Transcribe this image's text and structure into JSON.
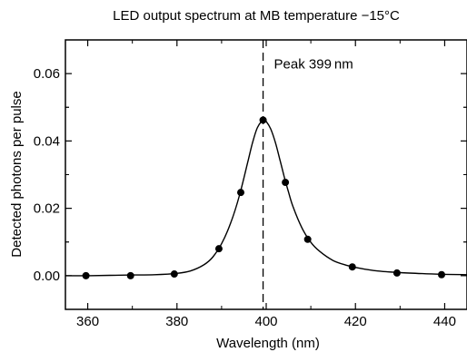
{
  "chart_data": {
    "type": "scatter",
    "title": "LED output spectrum at MB temperature −15°C",
    "xlabel": "Wavelength (nm)",
    "ylabel": "Detected photons per pulse",
    "xlim": [
      355,
      445
    ],
    "ylim": [
      -0.01,
      0.07
    ],
    "xticks": [
      360,
      380,
      400,
      420,
      440
    ],
    "xtick_labels": [
      "360",
      "380",
      "400",
      "420",
      "440"
    ],
    "yticks": [
      0.0,
      0.02,
      0.04,
      0.06
    ],
    "ytick_labels": [
      "0.00",
      "0.02",
      "0.04",
      "0.06"
    ],
    "grid": false,
    "legend": "none",
    "series": [
      {
        "x": [
          359.6,
          369.6,
          379.4,
          389.4,
          394.3,
          399.3,
          404.3,
          409.3,
          419.3,
          429.3,
          439.3
        ],
        "y": [
          0.0,
          0.0,
          0.0005,
          0.008,
          0.0247,
          0.0462,
          0.0277,
          0.0108,
          0.0026,
          0.0008,
          0.0003
        ]
      }
    ],
    "fit_curve": {
      "x": [
        355,
        360,
        365,
        370,
        375,
        380,
        383,
        386,
        388,
        390,
        392,
        394,
        396,
        397,
        398,
        399,
        399.5,
        400,
        401,
        402,
        403,
        404,
        405,
        406,
        408,
        410,
        412,
        415,
        418,
        421,
        425,
        430,
        435,
        440,
        445
      ],
      "y": [
        0.0,
        0.0,
        0.0001,
        0.0002,
        0.0003,
        0.0007,
        0.0014,
        0.0032,
        0.0055,
        0.0095,
        0.0155,
        0.0238,
        0.0345,
        0.0398,
        0.0439,
        0.0459,
        0.0461,
        0.0458,
        0.0436,
        0.0398,
        0.0348,
        0.0296,
        0.0248,
        0.0205,
        0.0142,
        0.0099,
        0.0072,
        0.0045,
        0.0031,
        0.0022,
        0.0014,
        0.0009,
        0.0006,
        0.0004,
        0.0003
      ]
    },
    "peak_line": {
      "x": 399.3,
      "label": "Peak 399 nm"
    }
  }
}
